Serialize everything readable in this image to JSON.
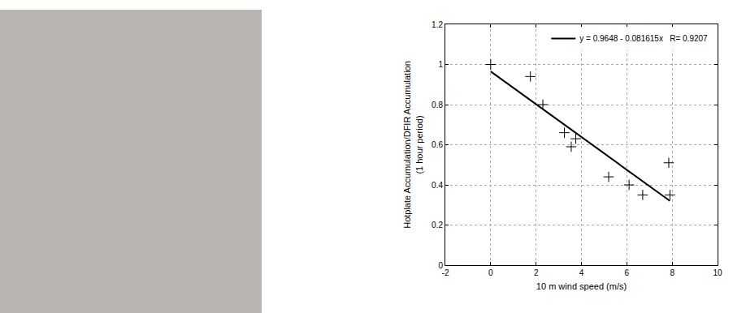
{
  "chart_data": {
    "type": "scatter",
    "x_label": "10 m wind speed (m/s)",
    "y_label": "Hotplate Accumulation/DFIR Accumulation\n(1 hour period)",
    "series": [
      {
        "type": "scatter",
        "marker": "cross",
        "color": "#000000",
        "x": [
          0,
          1.75,
          2.3,
          3.25,
          3.55,
          3.75,
          5.2,
          6.1,
          6.7,
          7.85,
          7.9
        ],
        "values": [
          1.0,
          0.94,
          0.8,
          0.66,
          0.59,
          0.63,
          0.44,
          0.4,
          0.35,
          0.51,
          0.35
        ]
      },
      {
        "type": "line",
        "name": "y = 0.9648 - 0.081615x   R= 0.9207",
        "color": "#000000",
        "line_style": "solid",
        "x": [
          0,
          7.9
        ],
        "values": [
          0.965,
          0.32
        ]
      }
    ],
    "xlim": [
      -2,
      10
    ],
    "xticks": [
      -2,
      0,
      2,
      4,
      6,
      8,
      10
    ],
    "ylim": [
      0,
      1.2
    ],
    "yticks": [
      0,
      0.2,
      0.4,
      0.6,
      0.8,
      1,
      1.2
    ],
    "grid": true,
    "legend": "top right"
  }
}
